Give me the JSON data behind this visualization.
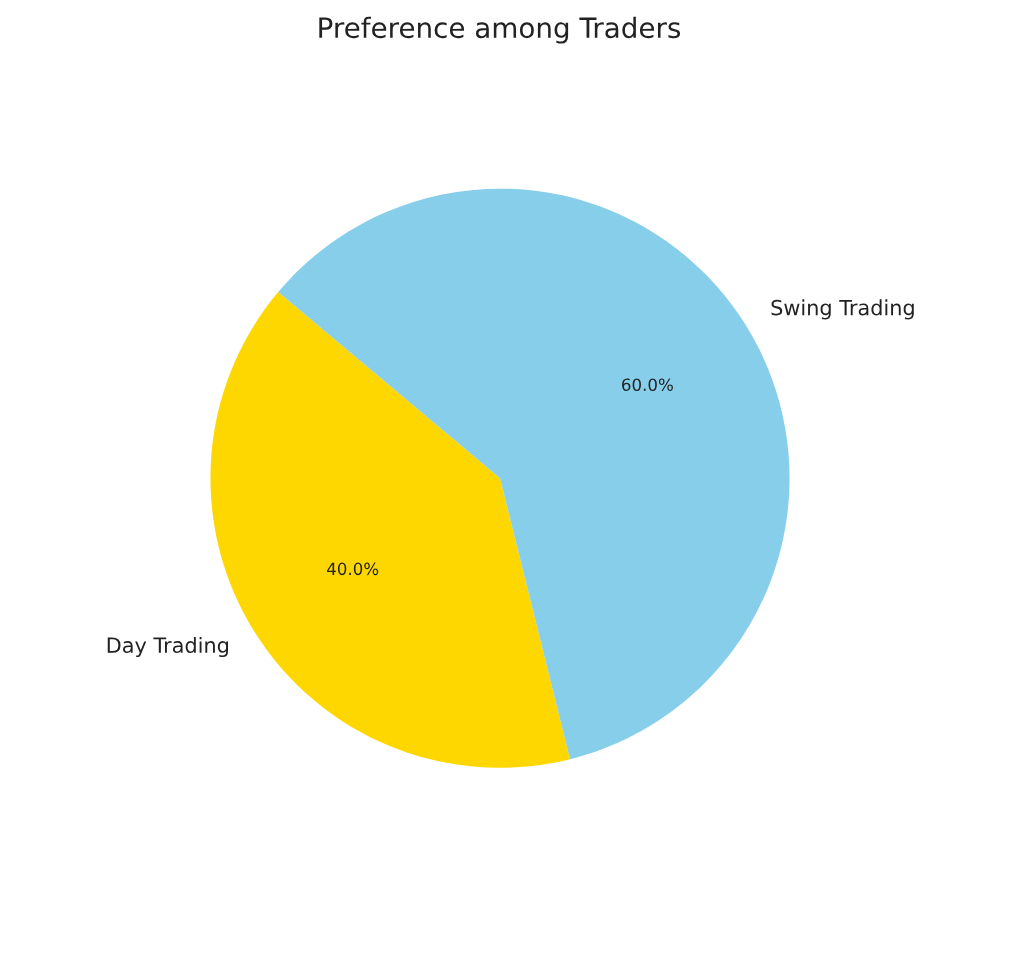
{
  "chart_data": {
    "type": "pie",
    "title": "Preference among Traders",
    "categories": [
      "Day Trading",
      "Swing Trading"
    ],
    "values": [
      40,
      60
    ],
    "colors": [
      "#ffd700",
      "#87ceeb"
    ],
    "value_labels": [
      "40.0%",
      "60.0%"
    ]
  }
}
